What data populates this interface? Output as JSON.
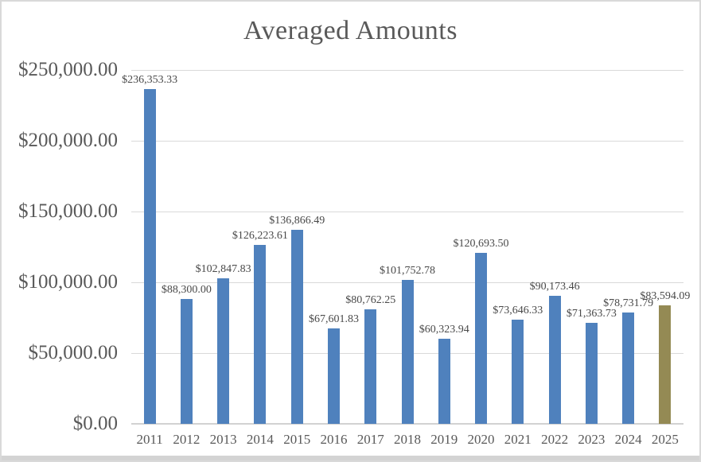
{
  "chart_data": {
    "type": "bar",
    "title": "Averaged Amounts",
    "xlabel": "",
    "ylabel": "",
    "categories": [
      "2011",
      "2012",
      "2013",
      "2014",
      "2015",
      "2016",
      "2017",
      "2018",
      "2019",
      "2020",
      "2021",
      "2022",
      "2023",
      "2024",
      "2025"
    ],
    "values": [
      236353.33,
      88300.0,
      102847.83,
      126223.61,
      136866.49,
      67601.83,
      80762.25,
      101752.78,
      60323.94,
      120693.5,
      73646.33,
      90173.46,
      71363.73,
      78731.79,
      83594.09
    ],
    "data_labels": [
      "$236,353.33",
      "$88,300.00",
      "$102,847.83",
      "$126,223.61",
      "$136,866.49",
      "$67,601.83",
      "$80,762.25",
      "$101,752.78",
      "$60,323.94",
      "$120,693.50",
      "$73,646.33",
      "$90,173.46",
      "$71,363.73",
      "$78,731.79",
      "$83,594.09"
    ],
    "y_ticks": [
      "$250,000.00",
      "$200,000.00",
      "$150,000.00",
      "$100,000.00",
      "$50,000.00",
      "$0.00"
    ],
    "ylim": [
      0,
      250000
    ],
    "grid": true,
    "legend": "none",
    "bar_color": "#4F81BD",
    "highlight_color": "#948A54",
    "highlight_index": 14,
    "gridline_color": "#D9D9D9",
    "axis_text_color": "#595959",
    "data_label_color": "#494949"
  }
}
